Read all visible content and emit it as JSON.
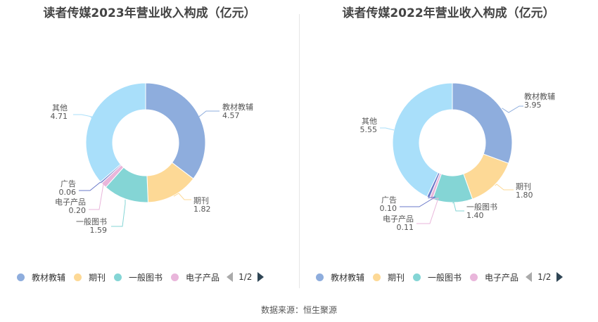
{
  "chart_data": [
    {
      "type": "pie",
      "title": "读者传媒2023年营业收入构成（亿元）",
      "slices": [
        {
          "name": "教材教辅",
          "value": 4.57,
          "label": "4.57",
          "color": "#8eaddd"
        },
        {
          "name": "期刊",
          "value": 1.82,
          "label": "1.82",
          "color": "#fdd996"
        },
        {
          "name": "一般图书",
          "value": 1.59,
          "label": "1.59",
          "color": "#84d5d5"
        },
        {
          "name": "电子产品",
          "value": 0.2,
          "label": "0.20",
          "color": "#e9b6db"
        },
        {
          "name": "广告",
          "value": 0.06,
          "label": "0.06",
          "color": "#6a79c9"
        },
        {
          "name": "其他",
          "value": 4.71,
          "label": "4.71",
          "color": "#a9dffa"
        }
      ]
    },
    {
      "type": "pie",
      "title": "读者传媒2022年营业收入构成（亿元）",
      "slices": [
        {
          "name": "教材教辅",
          "value": 3.95,
          "label": "3.95",
          "color": "#8eaddd"
        },
        {
          "name": "期刊",
          "value": 1.8,
          "label": "1.80",
          "color": "#fdd996"
        },
        {
          "name": "一般图书",
          "value": 1.4,
          "label": "1.40",
          "color": "#84d5d5"
        },
        {
          "name": "电子产品",
          "value": 0.11,
          "label": "0.11",
          "color": "#e9b6db"
        },
        {
          "name": "广告",
          "value": 0.1,
          "label": "0.10",
          "color": "#6a79c9"
        },
        {
          "name": "其他",
          "value": 5.55,
          "label": "5.55",
          "color": "#a9dffa"
        }
      ]
    }
  ],
  "legend": {
    "items": [
      {
        "name": "教材教辅",
        "color": "#8eaddd"
      },
      {
        "name": "期刊",
        "color": "#fdd996"
      },
      {
        "name": "一般图书",
        "color": "#84d5d5"
      },
      {
        "name": "电子产品",
        "color": "#e9b6db"
      }
    ],
    "page": "1/2"
  },
  "source": "数据来源：恒生聚源"
}
